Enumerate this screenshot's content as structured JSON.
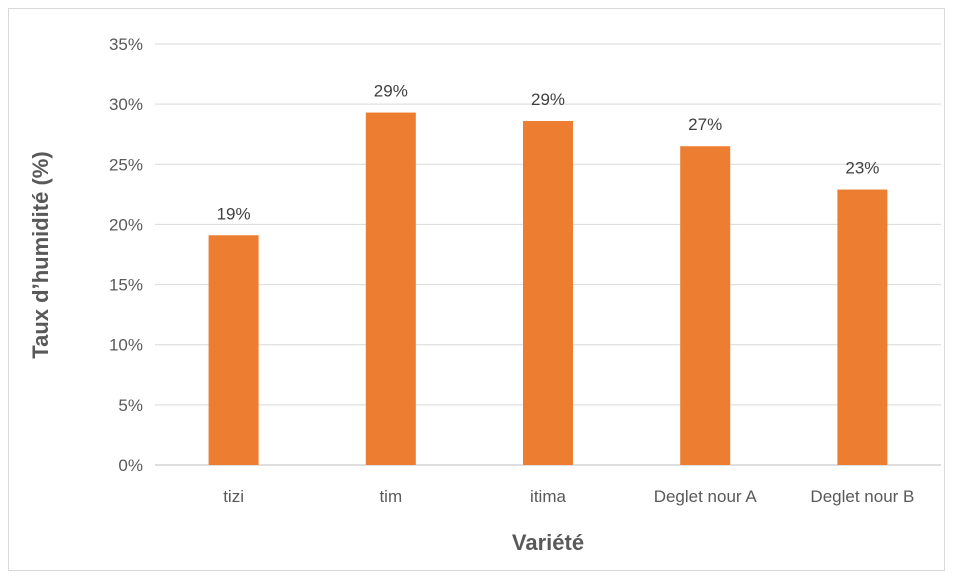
{
  "chart_data": {
    "type": "bar",
    "categories": [
      "tizi",
      "tim",
      "itima",
      "Deglet nour A",
      "Deglet nour B"
    ],
    "values": [
      0.191,
      0.293,
      0.286,
      0.265,
      0.229
    ],
    "data_labels": [
      "19%",
      "29%",
      "29%",
      "27%",
      "23%"
    ],
    "xlabel": "Variété",
    "ylabel": "Taux d’humidité (%)",
    "ylim": [
      0,
      0.35
    ],
    "yticks": [
      0,
      0.05,
      0.1,
      0.15,
      0.2,
      0.25,
      0.3,
      0.35
    ],
    "ytick_labels": [
      "0%",
      "5%",
      "10%",
      "15%",
      "20%",
      "25%",
      "30%",
      "35%"
    ],
    "grid": true,
    "legend": "none",
    "colors": {
      "bar": "#ed7d31",
      "grid": "#d9d9d9",
      "axis": "#bfbfbf"
    }
  }
}
